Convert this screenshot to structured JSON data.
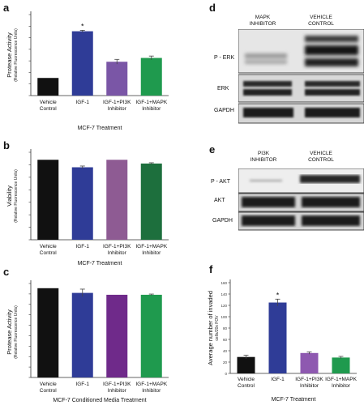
{
  "chart_data": [
    {
      "panel": "a",
      "type": "bar",
      "ylabel": "Protease Activity",
      "ylabel_sub": "(Relative Fluorescence Units)",
      "xlabel": "MCF-7 Treatment",
      "ytick_labels": [
        "",
        "",
        "",
        "",
        "",
        "",
        "",
        ""
      ],
      "ylim": [
        0,
        1700
      ],
      "categories": [
        "Vehicle Control",
        "IGF-1",
        "IGF-1+PI3K Inhibitor",
        "IGF-1+MAPK Inhibitor"
      ],
      "values": [
        370,
        1350,
        710,
        790
      ],
      "errors": [
        0,
        20,
        50,
        40
      ],
      "annotations": [
        "",
        "*",
        "",
        ""
      ],
      "colors": [
        "#111111",
        "#2f3c97",
        "#7a56a6",
        "#1f9a4e"
      ]
    },
    {
      "panel": "b",
      "type": "bar",
      "ylabel": "Viability",
      "ylabel_sub": "(Relative Fluorescence Units)",
      "xlabel": "MCF-7 Treatment",
      "ytick_labels": [
        "",
        "",
        "",
        "",
        "",
        "",
        "",
        ""
      ],
      "ylim": [
        0,
        3500
      ],
      "categories": [
        "Vehicle Control",
        "IGF-1",
        "IGF-1+PI3K Inhibitor",
        "IGF-1+MAPK Inhibitor"
      ],
      "values": [
        3200,
        2900,
        3200,
        3050
      ],
      "errors": [
        0,
        50,
        0,
        30
      ],
      "annotations": [
        "",
        "",
        "",
        ""
      ],
      "colors": [
        "#111111",
        "#2f3c97",
        "#8e5b93",
        "#1d6f3d"
      ]
    },
    {
      "panel": "c",
      "type": "bar",
      "ylabel": "Protease Activity",
      "ylabel_sub": "(Relative Fluorescence Units)",
      "xlabel": "MCF-7 Conditioned Media Treatment",
      "ytick_labels": [
        "",
        "",
        "",
        "",
        "",
        "",
        "",
        "",
        "",
        ""
      ],
      "ylim": [
        0,
        2000
      ],
      "categories": [
        "Vehicle Control",
        "IGF-1",
        "IGF-1+PI3K Inhibitor",
        "IGF-1+MAPK Inhibitor"
      ],
      "values": [
        1900,
        1800,
        1760,
        1760
      ],
      "errors": [
        0,
        80,
        0,
        15
      ],
      "annotations": [
        "",
        "",
        "",
        ""
      ],
      "colors": [
        "#111111",
        "#2f3c97",
        "#6f2a8a",
        "#1f9a4e"
      ]
    },
    {
      "panel": "f",
      "type": "bar",
      "ylabel": "Average number of invaded",
      "ylabel_sub": "cells/20x FOV",
      "xlabel": "MCF-7 Treatment",
      "ytick_labels": [
        "0",
        "20",
        "40",
        "60",
        "80",
        "100",
        "120",
        "140",
        "160"
      ],
      "ylim": [
        0,
        160
      ],
      "categories": [
        "Vehicle Control",
        "IGF-1",
        "IGF-1+PI3K Inhibitor",
        "IGF-1+MAPK Inhibitor"
      ],
      "values": [
        29,
        125,
        36,
        28
      ],
      "errors": [
        3,
        6,
        2,
        2
      ],
      "annotations": [
        "",
        "*",
        "",
        ""
      ],
      "colors": [
        "#111111",
        "#2f3c97",
        "#8e59b0",
        "#1f9a4e"
      ]
    }
  ],
  "panels": {
    "a": "a",
    "b": "b",
    "c": "c",
    "d": "d",
    "e": "e",
    "f": "f"
  },
  "blot_d": {
    "col1": "MAPK INHIBITOR",
    "col2": "VEHICLE CONTROL",
    "rows": [
      "P - ERK",
      "ERK",
      "GAPDH"
    ]
  },
  "blot_e": {
    "col1": "PI3K INHIBITOR",
    "col2": "VEHICLE CONTROL",
    "rows": [
      "P - AKT",
      "AKT",
      "GAPDH"
    ]
  }
}
